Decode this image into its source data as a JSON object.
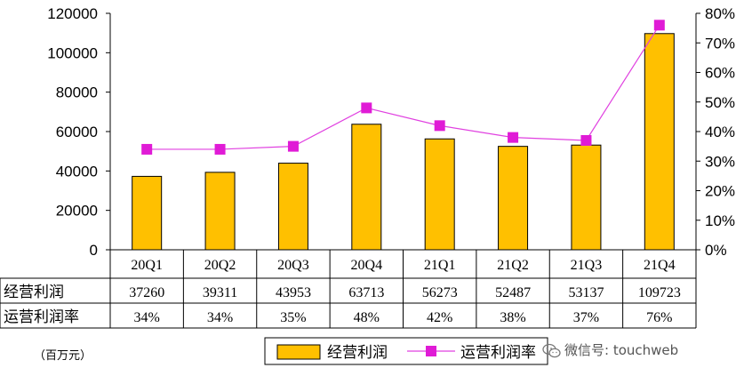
{
  "chart_data": {
    "type": "bar",
    "categories": [
      "20Q1",
      "20Q2",
      "20Q3",
      "20Q4",
      "21Q1",
      "21Q2",
      "21Q3",
      "21Q4"
    ],
    "series": [
      {
        "name": "经营利润",
        "type": "bar",
        "axis": "left",
        "color": "#FFC000",
        "values": [
          37260,
          39311,
          43953,
          63713,
          56273,
          52487,
          53137,
          109723
        ]
      },
      {
        "name": "运营利润率",
        "type": "line",
        "axis": "right",
        "color": "#E040E0",
        "marker": "square",
        "marker_color": "#E01BD6",
        "values": [
          34,
          34,
          35,
          48,
          42,
          38,
          37,
          76
        ]
      }
    ],
    "y_left": {
      "min": 0,
      "max": 120000,
      "ticks": [
        "0",
        "20000",
        "40000",
        "60000",
        "80000",
        "100000",
        "120000"
      ]
    },
    "y_right": {
      "min": 0,
      "max": 80,
      "ticks": [
        "0%",
        "10%",
        "20%",
        "30%",
        "40%",
        "50%",
        "60%",
        "70%",
        "80%"
      ]
    },
    "table": {
      "row_labels": [
        "经营利润",
        "运营利润率"
      ],
      "rows": [
        [
          "37260",
          "39311",
          "43953",
          "63713",
          "56273",
          "52487",
          "53137",
          "109723"
        ],
        [
          "34%",
          "34%",
          "35%",
          "48%",
          "42%",
          "38%",
          "37%",
          "76%"
        ]
      ]
    },
    "legend": [
      "经营利润",
      "运营利润率"
    ],
    "legend_position": "bottom",
    "unit_label": "（百万元）",
    "watermark": "微信号: touchweb",
    "grid": false
  }
}
